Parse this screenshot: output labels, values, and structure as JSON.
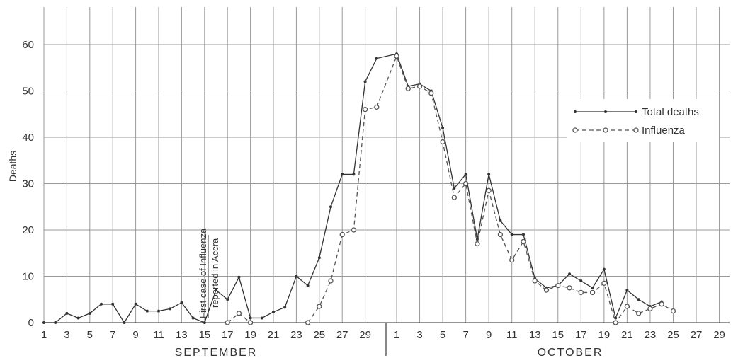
{
  "chart_data": {
    "type": "line",
    "ylabel": "Deaths",
    "ylim": [
      0,
      69
    ],
    "y_ticks": [
      0,
      10,
      20,
      30,
      40,
      50,
      60
    ],
    "months": [
      {
        "name": "SEPTEMBER",
        "days": 30
      },
      {
        "name": "OCTOBER",
        "days": 31
      }
    ],
    "x_tick_labels_september": [
      "1",
      "3",
      "5",
      "7",
      "9",
      "11",
      "13",
      "15",
      "17",
      "19",
      "21",
      "23",
      "25",
      "27",
      "29"
    ],
    "x_tick_labels_october": [
      "1",
      "3",
      "5",
      "7",
      "9",
      "11",
      "13",
      "15",
      "17",
      "19",
      "21",
      "23",
      "25",
      "27",
      "29"
    ],
    "annotation": {
      "line1": "First case of Influenza",
      "line2": "reported in Accra"
    },
    "legend_position": "top-right",
    "grid": true,
    "series": [
      {
        "name": "Total deaths",
        "style": "solid",
        "color": "#333333",
        "points": [
          [
            "Sep 1",
            0
          ],
          [
            "Sep 2",
            0
          ],
          [
            "Sep 3",
            2
          ],
          [
            "Sep 4",
            1
          ],
          [
            "Sep 5",
            2
          ],
          [
            "Sep 6",
            4
          ],
          [
            "Sep 7",
            4
          ],
          [
            "Sep 8",
            0
          ],
          [
            "Sep 9",
            4
          ],
          [
            "Sep 10",
            2.5
          ],
          [
            "Sep 11",
            2.5
          ],
          [
            "Sep 12",
            3
          ],
          [
            "Sep 13",
            4.3
          ],
          [
            "Sep 14",
            1
          ],
          [
            "Sep 15",
            0
          ],
          [
            "Sep 16",
            7
          ],
          [
            "Sep 17",
            5
          ],
          [
            "Sep 18",
            9.8
          ],
          [
            "Sep 19",
            1
          ],
          [
            "Sep 20",
            1
          ],
          [
            "Sep 21",
            2.3
          ],
          [
            "Sep 22",
            3.3
          ],
          [
            "Sep 23",
            10
          ],
          [
            "Sep 24",
            8
          ],
          [
            "Sep 25",
            14
          ],
          [
            "Sep 26",
            25
          ],
          [
            "Sep 27",
            32
          ],
          [
            "Sep 28",
            32
          ],
          [
            "Sep 29",
            52
          ],
          [
            "Sep 30",
            57
          ],
          [
            "Oct 1",
            58
          ],
          [
            "Oct 2",
            51
          ],
          [
            "Oct 3",
            51.5
          ],
          [
            "Oct 4",
            50
          ],
          [
            "Oct 5",
            42
          ],
          [
            "Oct 6",
            29
          ],
          [
            "Oct 7",
            32
          ],
          [
            "Oct 8",
            18
          ],
          [
            "Oct 9",
            32
          ],
          [
            "Oct 10",
            22
          ],
          [
            "Oct 11",
            19
          ],
          [
            "Oct 12",
            19
          ],
          [
            "Oct 13",
            9.5
          ],
          [
            "Oct 14",
            7.5
          ],
          [
            "Oct 15",
            8
          ],
          [
            "Oct 16",
            10.5
          ],
          [
            "Oct 17",
            9
          ],
          [
            "Oct 18",
            7.5
          ],
          [
            "Oct 19",
            11.5
          ],
          [
            "Oct 20",
            1
          ],
          [
            "Oct 21",
            7
          ],
          [
            "Oct 22",
            5
          ],
          [
            "Oct 23",
            3.5
          ],
          [
            "Oct 24",
            4.5
          ]
        ]
      },
      {
        "name": "Influenza",
        "style": "dashed",
        "color": "#555555",
        "segments": [
          [
            [
              "Sep 17",
              0
            ],
            [
              "Sep 18",
              2
            ],
            [
              "Sep 19",
              0
            ]
          ],
          [
            [
              "Sep 24",
              0
            ],
            [
              "Sep 25",
              3.5
            ],
            [
              "Sep 26",
              9
            ],
            [
              "Sep 27",
              19
            ],
            [
              "Sep 28",
              20
            ],
            [
              "Sep 29",
              46
            ],
            [
              "Sep 30",
              46.5
            ],
            [
              "Oct 1",
              57.5
            ],
            [
              "Oct 2",
              50.5
            ],
            [
              "Oct 3",
              51
            ],
            [
              "Oct 4",
              49.5
            ],
            [
              "Oct 5",
              39
            ],
            [
              "Oct 6",
              27
            ],
            [
              "Oct 7",
              30
            ],
            [
              "Oct 8",
              17
            ],
            [
              "Oct 9",
              28.5
            ],
            [
              "Oct 10",
              19
            ],
            [
              "Oct 11",
              13.5
            ],
            [
              "Oct 12",
              17.5
            ],
            [
              "Oct 13",
              9
            ],
            [
              "Oct 14",
              7
            ],
            [
              "Oct 15",
              8
            ],
            [
              "Oct 16",
              7.5
            ],
            [
              "Oct 17",
              6.5
            ],
            [
              "Oct 18",
              6.5
            ],
            [
              "Oct 19",
              8.5
            ],
            [
              "Oct 20",
              0
            ],
            [
              "Oct 21",
              3.5
            ],
            [
              "Oct 22",
              2
            ],
            [
              "Oct 23",
              3
            ],
            [
              "Oct 24",
              4
            ],
            [
              "Oct 25",
              2.5
            ]
          ]
        ]
      }
    ]
  }
}
